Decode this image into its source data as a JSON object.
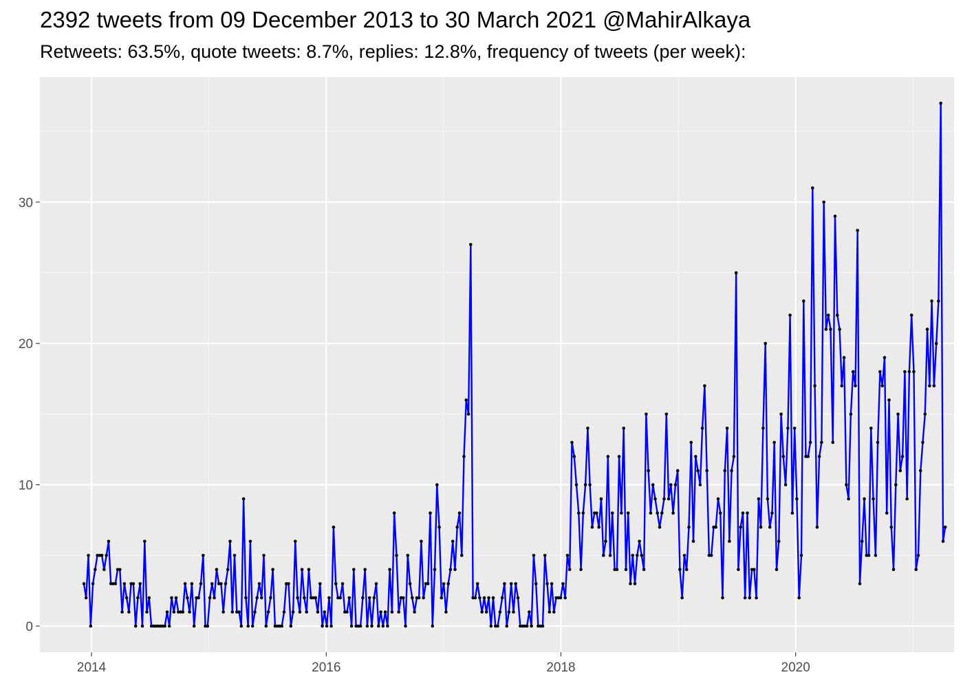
{
  "chart_data": {
    "type": "line",
    "title": "2392 tweets from 09 December 2013 to 30 March 2021 @MahirAlkaya",
    "subtitle": "Retweets: 63.5%, quote tweets: 8.7%, replies: 12.8%, frequency of tweets (per week):",
    "xlabel": "",
    "ylabel": "",
    "x_range": [
      2013.56,
      2021.35
    ],
    "ylim": [
      -1.85,
      38.85
    ],
    "x_ticks": [
      2014,
      2016,
      2018,
      2020
    ],
    "y_ticks": [
      0,
      10,
      20,
      30
    ],
    "grid": true,
    "legend": "none",
    "series": [
      {
        "x_start": 2013.935,
        "x_step": 0.019165,
        "values": [
          3,
          2,
          5,
          0,
          3,
          4,
          5,
          5,
          5,
          4,
          5,
          6,
          3,
          3,
          3,
          4,
          4,
          1,
          3,
          2,
          1,
          3,
          3,
          0,
          2,
          3,
          0,
          6,
          1,
          2,
          0,
          0,
          0,
          0,
          0,
          0,
          0,
          1,
          0,
          2,
          1,
          2,
          1,
          1,
          1,
          3,
          2,
          1,
          3,
          0,
          2,
          2,
          3,
          5,
          0,
          0,
          2,
          3,
          2,
          4,
          3,
          3,
          1,
          3,
          4,
          6,
          1,
          5,
          1,
          1,
          0,
          9,
          2,
          0,
          6,
          0,
          1,
          2,
          3,
          2,
          5,
          0,
          1,
          2,
          4,
          0,
          0,
          0,
          0,
          1,
          3,
          3,
          0,
          1,
          6,
          2,
          1,
          4,
          2,
          1,
          4,
          2,
          2,
          2,
          1,
          3,
          0,
          1,
          0,
          2,
          0,
          7,
          3,
          2,
          2,
          3,
          1,
          1,
          2,
          0,
          4,
          0,
          0,
          0,
          2,
          4,
          0,
          2,
          0,
          2,
          3,
          0,
          1,
          0,
          1,
          0,
          4,
          1,
          8,
          5,
          1,
          2,
          2,
          0,
          5,
          3,
          2,
          1,
          2,
          2,
          6,
          2,
          3,
          3,
          8,
          0,
          4,
          10,
          7,
          2,
          3,
          1,
          3,
          4,
          6,
          4,
          7,
          8,
          5,
          12,
          16,
          15,
          27,
          2,
          2,
          3,
          2,
          1,
          2,
          1,
          2,
          0,
          2,
          0,
          0,
          1,
          2,
          3,
          0,
          1,
          3,
          1,
          3,
          2,
          0,
          0,
          0,
          0,
          1,
          0,
          5,
          3,
          0,
          0,
          0,
          5,
          3,
          1,
          3,
          1,
          2,
          2,
          2,
          3,
          2,
          5,
          4,
          13,
          12,
          10,
          8,
          4,
          8,
          10,
          14,
          10,
          7,
          8,
          8,
          7,
          9,
          5,
          6,
          12,
          5,
          8,
          4,
          4,
          12,
          8,
          14,
          4,
          8,
          3,
          5,
          3,
          5,
          6,
          5,
          4,
          15,
          11,
          8,
          10,
          9,
          8,
          7,
          8,
          9,
          15,
          9,
          10,
          8,
          10,
          11,
          4,
          2,
          5,
          4,
          7,
          13,
          6,
          12,
          11,
          10,
          14,
          17,
          11,
          5,
          5,
          7,
          7,
          9,
          8,
          2,
          11,
          14,
          6,
          11,
          12,
          25,
          4,
          7,
          8,
          2,
          8,
          2,
          4,
          4,
          2,
          9,
          7,
          14,
          20,
          9,
          7,
          8,
          13,
          4,
          6,
          15,
          12,
          10,
          14,
          22,
          8,
          14,
          9,
          2,
          5,
          23,
          12,
          12,
          13,
          31,
          17,
          7,
          12,
          13,
          30,
          21,
          22,
          21,
          13,
          29,
          22,
          21,
          17,
          19,
          10,
          9,
          15,
          18,
          17,
          28,
          3,
          6,
          9,
          5,
          5,
          14,
          9,
          5,
          13,
          18,
          17,
          19,
          8,
          16,
          7,
          4,
          10,
          15,
          11,
          12,
          18,
          9,
          18,
          22,
          18,
          4,
          5,
          11,
          13,
          15,
          21,
          17,
          23,
          17,
          20,
          23,
          37,
          6,
          7
        ]
      }
    ]
  },
  "colors": {
    "line": "#0000ff",
    "point": "#000000",
    "panel": "#ebebeb",
    "grid_major": "#ffffff",
    "grid_minor": "#f5f5f5"
  }
}
